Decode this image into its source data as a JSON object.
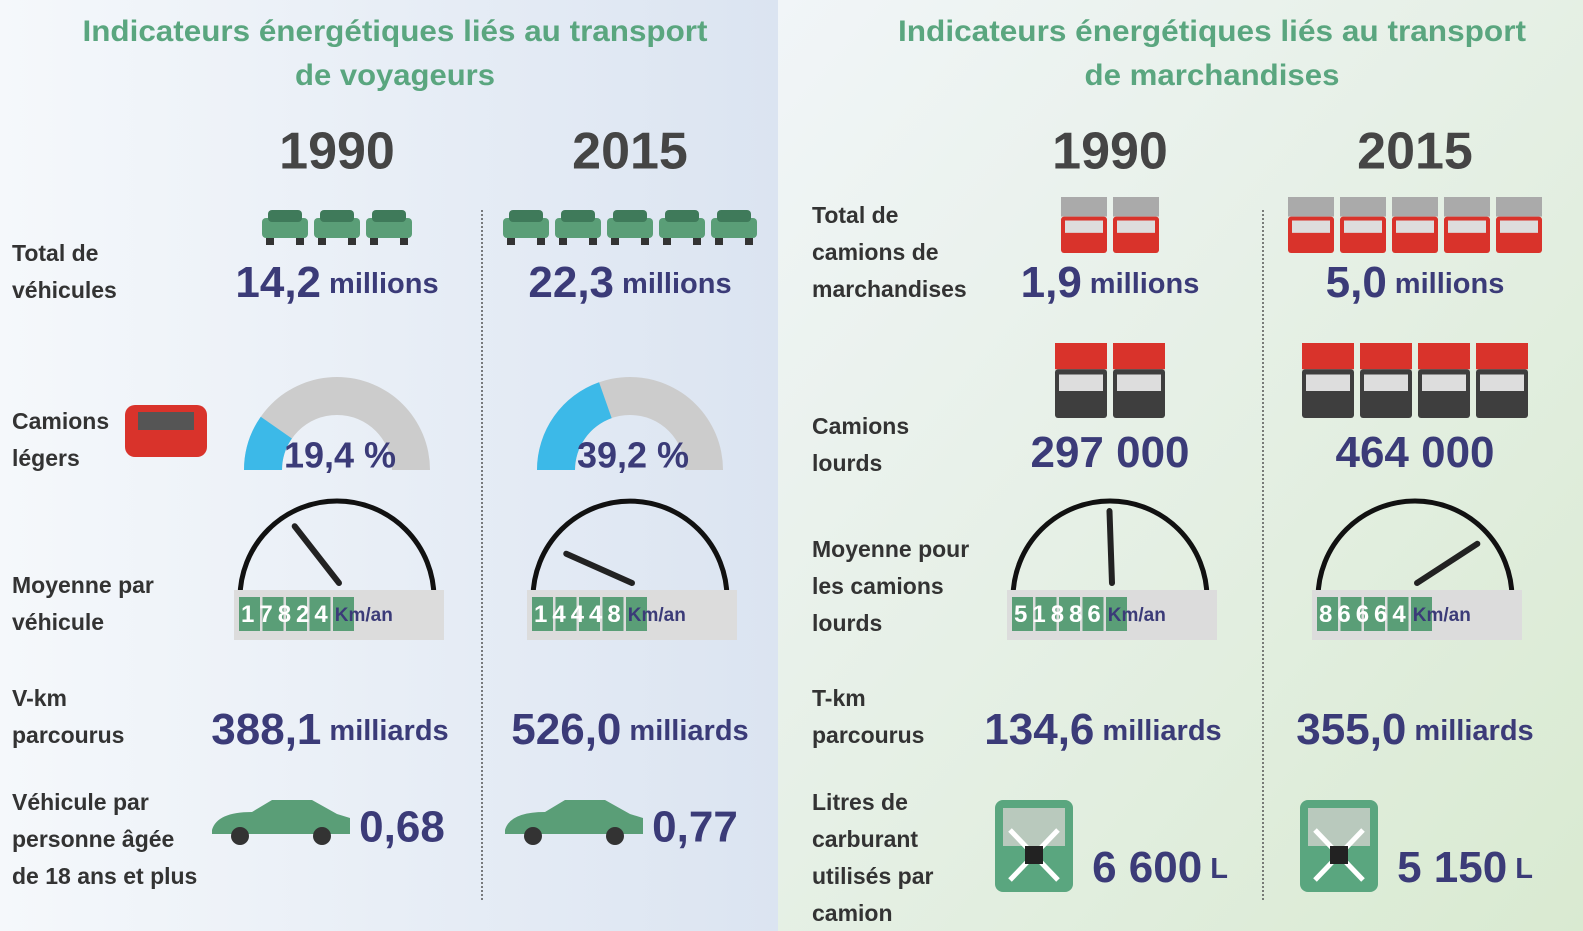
{
  "panels": [
    {
      "title_lines": [
        "Indicateurs énergétiques liés au transport",
        "de voyageurs"
      ],
      "years": [
        "1990",
        "2015"
      ],
      "rows": [
        {
          "label_lines": [
            "Total de",
            "véhicules"
          ],
          "values": [
            "14,2",
            "22,3"
          ],
          "unit": "millions"
        },
        {
          "label_lines": [
            "Camions",
            "légers"
          ],
          "values": [
            19.4,
            39.2
          ],
          "value_labels": [
            "19,4 %",
            "39,2 %"
          ]
        },
        {
          "label_lines": [
            "Moyenne par",
            "véhicule"
          ],
          "values": [
            17824,
            14448
          ],
          "unit": "Km/an"
        },
        {
          "label_lines": [
            "V-km",
            "parcourus"
          ],
          "values": [
            "388,1",
            "526,0"
          ],
          "unit": "milliards"
        },
        {
          "label_lines": [
            "Véhicule par",
            "personne âgée",
            "de 18 ans et plus"
          ],
          "values": [
            "0,68",
            "0,77"
          ]
        }
      ]
    },
    {
      "title_lines": [
        "Indicateurs énergétiques liés au transport",
        "de marchandises"
      ],
      "years": [
        "1990",
        "2015"
      ],
      "rows": [
        {
          "label_lines": [
            "Total de",
            "camions de",
            "marchandises"
          ],
          "values": [
            "1,9",
            "5,0"
          ],
          "unit": "millions"
        },
        {
          "label_lines": [
            "Camions",
            "lourds"
          ],
          "values": [
            "297 000",
            "464 000"
          ]
        },
        {
          "label_lines": [
            "Moyenne pour",
            "les camions",
            "lourds"
          ],
          "values": [
            51886,
            86664
          ],
          "unit": "Km/an"
        },
        {
          "label_lines": [
            "T-km",
            "parcourus"
          ],
          "values": [
            "134,6",
            "355,0"
          ],
          "unit": "milliards"
        },
        {
          "label_lines": [
            "Litres de",
            "carburant",
            "utilisés par",
            "camion"
          ],
          "values": [
            "6 600",
            "5 150"
          ],
          "unit": "L"
        }
      ]
    }
  ]
}
